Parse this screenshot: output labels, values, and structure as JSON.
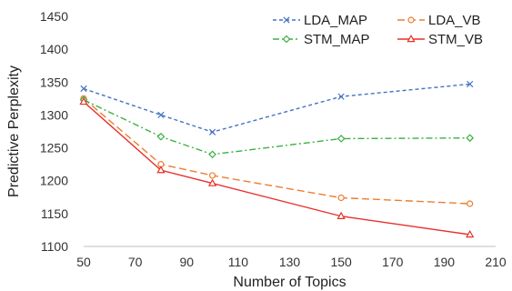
{
  "chart_data": {
    "type": "line",
    "title": "",
    "xlabel": "Number of Topics",
    "ylabel": "Predictive Perplexity",
    "x": [
      50,
      80,
      100,
      150,
      200
    ],
    "xlim": [
      50,
      210
    ],
    "ylim": [
      1100,
      1450
    ],
    "x_ticks": [
      50,
      70,
      90,
      110,
      130,
      150,
      170,
      190,
      210
    ],
    "y_ticks": [
      1100,
      1150,
      1200,
      1250,
      1300,
      1350,
      1400,
      1450
    ],
    "grid": false,
    "legend_position": "top-right",
    "series": [
      {
        "name": "LDA_MAP",
        "values": [
          1340,
          1300,
          1274,
          1328,
          1347
        ],
        "color": "#4472C4",
        "marker": "x",
        "dash": "dashed"
      },
      {
        "name": "LDA_VB",
        "values": [
          1325,
          1225,
          1208,
          1174,
          1165
        ],
        "color": "#ED7D31",
        "marker": "circle",
        "dash": "long-dashed"
      },
      {
        "name": "STM_MAP",
        "values": [
          1323,
          1267,
          1240,
          1264,
          1265
        ],
        "color": "#3CB043",
        "marker": "diamond",
        "dash": "dash-dot"
      },
      {
        "name": "STM_VB",
        "values": [
          1320,
          1216,
          1196,
          1146,
          1118
        ],
        "color": "#E8302A",
        "marker": "triangle",
        "dash": "solid"
      }
    ]
  }
}
